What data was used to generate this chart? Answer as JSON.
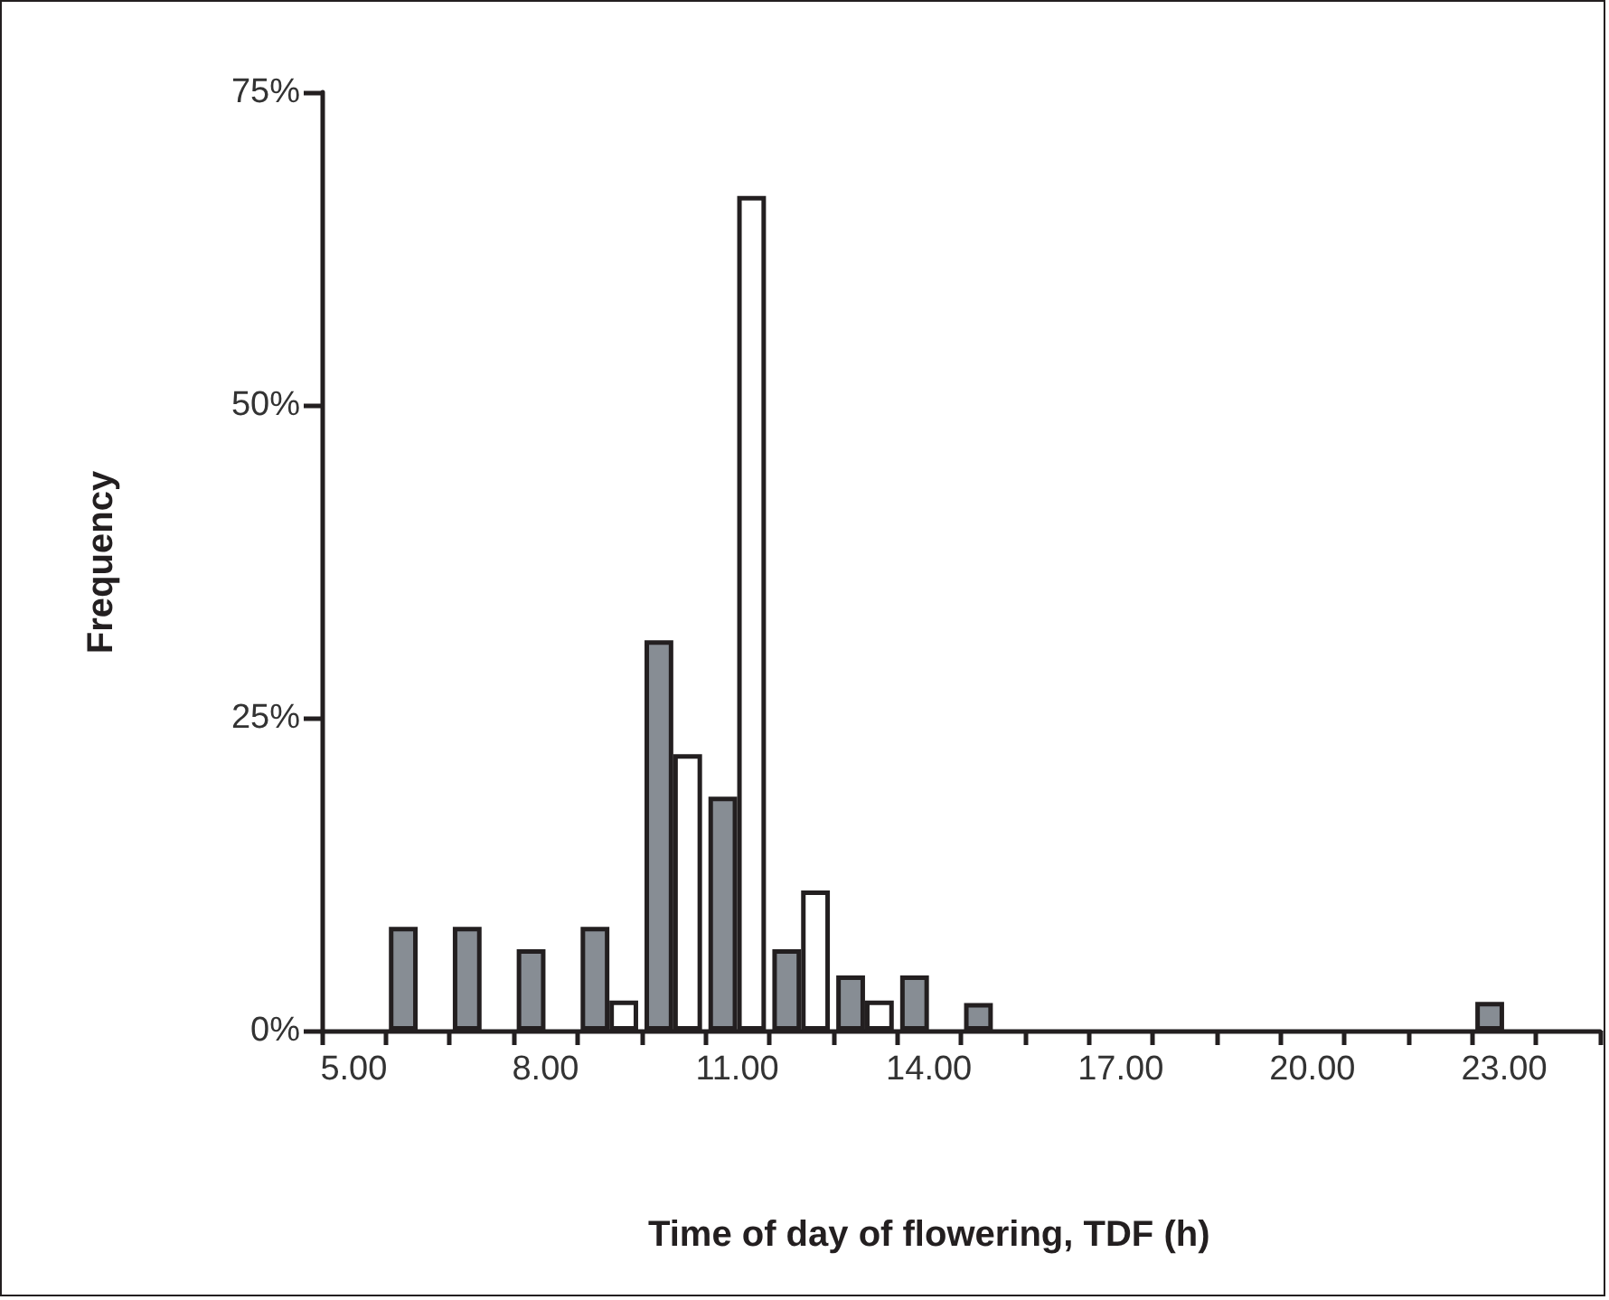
{
  "chart_data": {
    "type": "bar",
    "xlabel": "Time of day of flowering, TDF (h)",
    "ylabel": "Frequency",
    "categories": [
      "5.00",
      null,
      null,
      "8.00",
      null,
      null,
      "11.00",
      null,
      null,
      "14.00",
      null,
      null,
      "17.00",
      null,
      null,
      "20.00",
      null,
      null,
      "23.00",
      null
    ],
    "series": [
      {
        "color": "#878d94",
        "values": [
          null,
          8.3,
          8.3,
          6.5,
          8.3,
          31.2,
          18.7,
          6.5,
          4.4,
          4.4,
          2.2,
          null,
          null,
          null,
          null,
          null,
          null,
          null,
          2.3,
          null
        ]
      },
      {
        "color": "#ffffff",
        "values": [
          null,
          null,
          null,
          null,
          2.4,
          22.1,
          66.7,
          11.2,
          2.4,
          null,
          null,
          null,
          null,
          null,
          null,
          null,
          null,
          null,
          null,
          null
        ]
      }
    ],
    "ylim": [
      0,
      75
    ],
    "yticks": [
      {
        "value": 0,
        "label": "0%"
      },
      {
        "value": 25,
        "label": "25%"
      },
      {
        "value": 50,
        "label": "50%"
      },
      {
        "value": 75,
        "label": "75%"
      }
    ],
    "grid": false
  }
}
